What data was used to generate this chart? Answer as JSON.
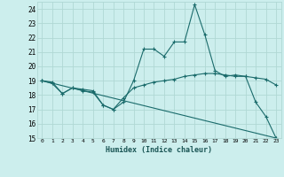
{
  "xlabel": "Humidex (Indice chaleur)",
  "background_color": "#cceeed",
  "grid_color": "#b0d8d5",
  "line_color": "#1a6b6b",
  "xlim": [
    -0.5,
    23.5
  ],
  "ylim": [
    15,
    24.5
  ],
  "yticks": [
    15,
    16,
    17,
    18,
    19,
    20,
    21,
    22,
    23,
    24
  ],
  "xticks": [
    0,
    1,
    2,
    3,
    4,
    5,
    6,
    7,
    8,
    9,
    10,
    11,
    12,
    13,
    14,
    15,
    16,
    17,
    18,
    19,
    20,
    21,
    22,
    23
  ],
  "line1_x": [
    0,
    1,
    2,
    3,
    4,
    5,
    6,
    7,
    8,
    9,
    10,
    11,
    12,
    13,
    14,
    15,
    16,
    17,
    18,
    19,
    20,
    21,
    22,
    23
  ],
  "line1_y": [
    19.0,
    18.8,
    18.1,
    18.5,
    18.4,
    18.3,
    17.3,
    17.0,
    17.5,
    19.0,
    21.2,
    21.2,
    20.7,
    21.7,
    21.7,
    24.3,
    22.2,
    19.7,
    19.3,
    19.4,
    19.3,
    17.5,
    16.5,
    15.0
  ],
  "line2_x": [
    0,
    1,
    2,
    3,
    4,
    5,
    6,
    7,
    8,
    9,
    10,
    11,
    12,
    13,
    14,
    15,
    16,
    17,
    18,
    19,
    20,
    21,
    22,
    23
  ],
  "line2_y": [
    19.0,
    18.9,
    18.1,
    18.5,
    18.3,
    18.2,
    17.3,
    17.0,
    17.8,
    18.5,
    18.7,
    18.9,
    19.0,
    19.1,
    19.3,
    19.4,
    19.5,
    19.5,
    19.4,
    19.3,
    19.3,
    19.2,
    19.1,
    18.7
  ],
  "line3_x": [
    0,
    23
  ],
  "line3_y": [
    19.0,
    15.0
  ]
}
